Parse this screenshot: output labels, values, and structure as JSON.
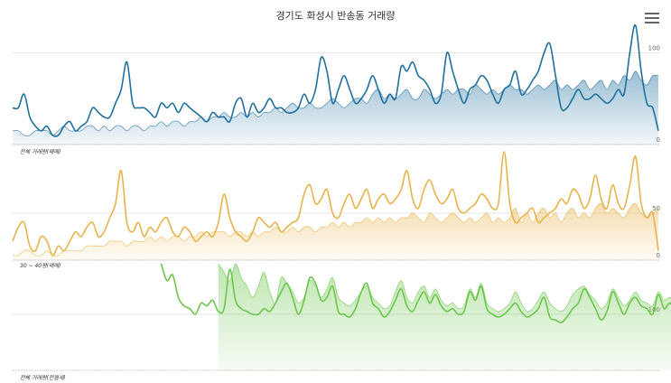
{
  "title": "경기도 화성시 반송동 거래량",
  "menu_icon": "hamburger-menu-icon",
  "chart_data": [
    {
      "type": "line",
      "label": "전체 거래량(매매)",
      "color": "#1f6f9f",
      "yticks": [
        {
          "value": 100,
          "label": "100"
        },
        {
          "value": 0,
          "label": "0"
        }
      ],
      "ylim": [
        0,
        130
      ],
      "start_index": 0,
      "series": [
        {
          "role": "line",
          "values": [
            40,
            40,
            55,
            30,
            20,
            15,
            20,
            10,
            10,
            20,
            25,
            15,
            20,
            25,
            40,
            35,
            30,
            30,
            45,
            60,
            90,
            45,
            40,
            40,
            35,
            30,
            45,
            40,
            45,
            35,
            45,
            40,
            35,
            30,
            25,
            35,
            30,
            30,
            25,
            45,
            50,
            30,
            45,
            35,
            40,
            50,
            40,
            40,
            35,
            35,
            40,
            55,
            45,
            60,
            95,
            80,
            45,
            60,
            75,
            60,
            45,
            50,
            60,
            75,
            60,
            45,
            55,
            50,
            85,
            80,
            90,
            75,
            70,
            60,
            45,
            55,
            100,
            80,
            60,
            45,
            60,
            65,
            75,
            70,
            55,
            45,
            60,
            65,
            80,
            55,
            60,
            70,
            80,
            100,
            110,
            75,
            40,
            40,
            50,
            60,
            50,
            50,
            55,
            50,
            45,
            50,
            60,
            55,
            100,
            130,
            80,
            45,
            40,
            15
          ]
        },
        {
          "role": "area",
          "values": [
            15,
            15,
            10,
            10,
            15,
            15,
            15,
            10,
            15,
            20,
            15,
            15,
            15,
            20,
            20,
            15,
            20,
            15,
            20,
            20,
            15,
            20,
            20,
            15,
            20,
            20,
            25,
            20,
            25,
            25,
            20,
            25,
            25,
            30,
            25,
            30,
            30,
            35,
            30,
            30,
            35,
            30,
            35,
            30,
            35,
            35,
            40,
            35,
            40,
            45,
            40,
            40,
            45,
            40,
            40,
            45,
            50,
            45,
            40,
            45,
            50,
            50,
            45,
            55,
            60,
            50,
            55,
            50,
            55,
            60,
            50,
            50,
            60,
            55,
            50,
            55,
            60,
            55,
            60,
            60,
            55,
            65,
            60,
            55,
            60,
            55,
            60,
            65,
            60,
            60,
            55,
            60,
            65,
            60,
            65,
            70,
            60,
            65,
            60,
            65,
            70,
            60,
            65,
            70,
            60,
            70,
            65,
            75,
            70,
            80,
            70,
            65,
            75,
            75
          ]
        }
      ]
    },
    {
      "type": "line",
      "label": "30 ~ 40평(매매)",
      "color": "#e8b34a",
      "yticks": [
        {
          "value": 50,
          "label": "50"
        },
        {
          "value": 0,
          "label": "0"
        }
      ],
      "ylim": [
        0,
        115
      ],
      "start_index": 0,
      "series": [
        {
          "role": "line",
          "values": [
            20,
            35,
            40,
            15,
            10,
            25,
            20,
            5,
            15,
            10,
            20,
            30,
            25,
            35,
            40,
            25,
            30,
            45,
            60,
            95,
            40,
            30,
            40,
            25,
            35,
            30,
            40,
            45,
            30,
            25,
            35,
            30,
            20,
            25,
            30,
            25,
            40,
            70,
            45,
            30,
            25,
            20,
            30,
            45,
            40,
            35,
            40,
            30,
            35,
            40,
            45,
            70,
            80,
            60,
            65,
            75,
            50,
            45,
            60,
            70,
            55,
            65,
            75,
            55,
            65,
            70,
            60,
            65,
            75,
            95,
            65,
            55,
            75,
            85,
            70,
            60,
            65,
            75,
            55,
            50,
            55,
            60,
            70,
            65,
            55,
            60,
            115,
            60,
            40,
            45,
            50,
            55,
            40,
            45,
            50,
            55,
            65,
            60,
            75,
            70,
            55,
            65,
            90,
            65,
            55,
            80,
            60,
            55,
            80,
            110,
            60,
            45,
            50,
            10
          ]
        },
        {
          "role": "area",
          "values": [
            5,
            5,
            10,
            10,
            5,
            5,
            10,
            5,
            5,
            10,
            10,
            10,
            10,
            15,
            15,
            15,
            15,
            20,
            20,
            20,
            15,
            20,
            20,
            20,
            25,
            20,
            25,
            20,
            25,
            25,
            20,
            25,
            25,
            30,
            25,
            30,
            30,
            30,
            25,
            30,
            30,
            25,
            30,
            25,
            30,
            30,
            35,
            30,
            30,
            35,
            30,
            35,
            35,
            30,
            35,
            35,
            40,
            35,
            40,
            35,
            40,
            40,
            45,
            40,
            45,
            40,
            45,
            40,
            45,
            45,
            50,
            45,
            40,
            50,
            45,
            40,
            45,
            50,
            45,
            40,
            45,
            40,
            45,
            50,
            40,
            45,
            40,
            45,
            55,
            40,
            50,
            40,
            50,
            55,
            45,
            50,
            40,
            50,
            55,
            45,
            50,
            45,
            55,
            60,
            50,
            55,
            50,
            45,
            55,
            60,
            50,
            45,
            50,
            55
          ]
        }
      ]
    },
    {
      "type": "line",
      "label": "전체 거래량(전월세)",
      "color": "#6cc64c",
      "yticks": [
        {
          "value": 100,
          "label": "100"
        }
      ],
      "ylim": [
        0,
        190
      ],
      "start_index": 26,
      "series": [
        {
          "role": "line",
          "values": [
            190,
            160,
            170,
            130,
            115,
            110,
            100,
            120,
            115,
            125,
            105,
            110,
            180,
            125,
            110,
            105,
            100,
            100,
            110,
            105,
            120,
            140,
            155,
            130,
            100,
            125,
            165,
            155,
            125,
            130,
            150,
            105,
            100,
            95,
            110,
            140,
            155,
            120,
            110,
            95,
            105,
            125,
            145,
            115,
            105,
            125,
            140,
            120,
            135,
            115,
            105,
            110,
            100,
            105,
            140,
            125,
            150,
            110,
            100,
            95,
            100,
            110,
            120,
            105,
            95,
            100,
            110,
            130,
            95,
            90,
            85,
            95,
            110,
            120,
            145,
            130,
            110,
            90,
            105,
            140,
            120,
            100,
            120,
            130,
            115,
            110,
            100,
            135,
            110,
            120,
            105,
            115,
            100,
            125,
            110,
            95,
            85,
            75,
            60,
            20
          ]
        },
        {
          "role": "area",
          "values": [
            0,
            0,
            0,
            0,
            0,
            0,
            0,
            0,
            0,
            0,
            190,
            175,
            160,
            190,
            165,
            150,
            130,
            150,
            175,
            140,
            120,
            165,
            155,
            140,
            120,
            130,
            160,
            150,
            130,
            145,
            165,
            130,
            120,
            115,
            125,
            140,
            150,
            130,
            120,
            110,
            115,
            140,
            160,
            130,
            120,
            140,
            150,
            130,
            145,
            125,
            115,
            120,
            110,
            115,
            145,
            130,
            155,
            120,
            110,
            105,
            110,
            120,
            140,
            120,
            105,
            110,
            125,
            140,
            120,
            110,
            105,
            115,
            135,
            145,
            150,
            135,
            125,
            110,
            120,
            145,
            130,
            115,
            125,
            140,
            125,
            120,
            115,
            140,
            125,
            130,
            120,
            125,
            115,
            140,
            150,
            140,
            120,
            110,
            105,
            95
          ]
        }
      ]
    }
  ]
}
